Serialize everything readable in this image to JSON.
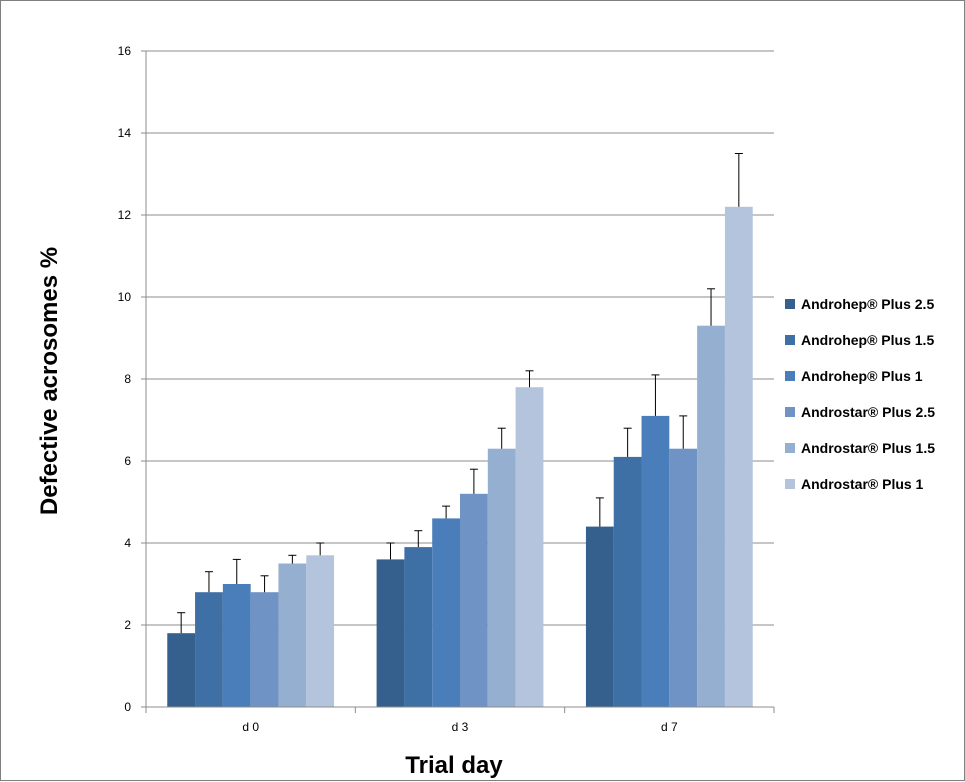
{
  "chart_data": {
    "type": "bar",
    "categories": [
      "d 0",
      "d 3",
      "d 7"
    ],
    "series": [
      {
        "name": "Androhep® Plus 2.5",
        "values": [
          1.8,
          3.6,
          4.4
        ],
        "errors": [
          0.5,
          0.4,
          0.7
        ],
        "color": "#355F8D"
      },
      {
        "name": "Androhep® Plus 1.5",
        "values": [
          2.8,
          3.9,
          6.1
        ],
        "errors": [
          0.5,
          0.4,
          0.7
        ],
        "color": "#3E6FA5"
      },
      {
        "name": "Androhep® Plus 1",
        "values": [
          3.0,
          4.6,
          7.1
        ],
        "errors": [
          0.6,
          0.3,
          1.0
        ],
        "color": "#4A7EBB"
      },
      {
        "name": "Androstar® Plus 2.5",
        "values": [
          2.8,
          5.2,
          6.3
        ],
        "errors": [
          0.4,
          0.6,
          0.8
        ],
        "color": "#7093C6"
      },
      {
        "name": "Androstar® Plus 1.5",
        "values": [
          3.5,
          6.3,
          9.3
        ],
        "errors": [
          0.2,
          0.5,
          0.9
        ],
        "color": "#95AFD1"
      },
      {
        "name": "Androstar® Plus 1",
        "values": [
          3.7,
          7.8,
          12.2
        ],
        "errors": [
          0.3,
          0.4,
          1.3
        ],
        "color": "#B3C4DC"
      }
    ],
    "title": "",
    "xlabel": "Trial day",
    "ylabel": "Defective acrosomes %",
    "ylim": [
      0,
      16
    ],
    "yticks": [
      0,
      2,
      4,
      6,
      8,
      10,
      12,
      14,
      16
    ],
    "grid": true,
    "legend_position": "right"
  }
}
